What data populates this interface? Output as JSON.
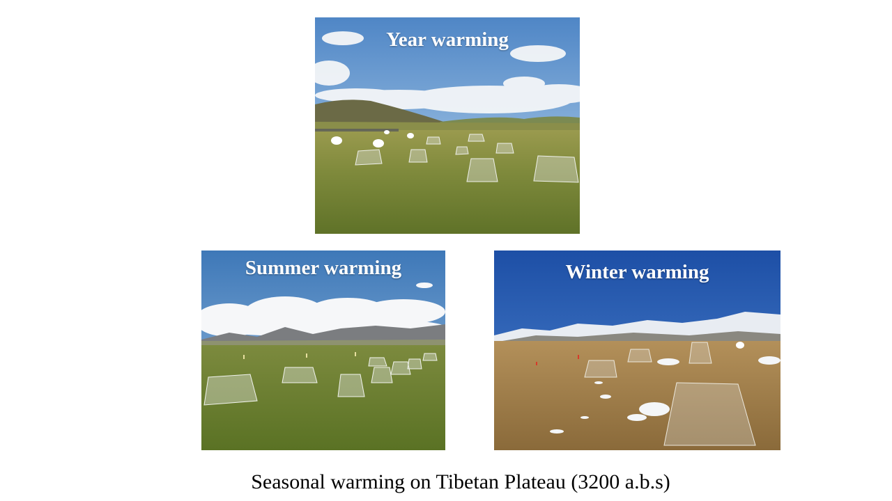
{
  "photos": {
    "year": {
      "label": "Year warming"
    },
    "summer": {
      "label": "Summer warming"
    },
    "winter": {
      "label": "Winter warming"
    }
  },
  "caption": "Seasonal warming on Tibetan Plateau (3200 a.b.s)"
}
